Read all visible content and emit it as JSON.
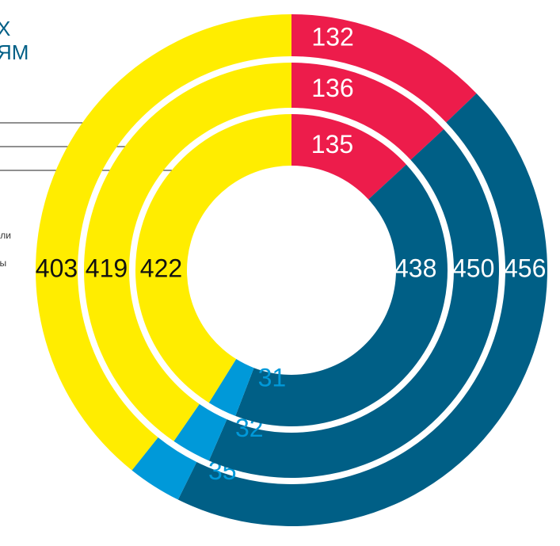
{
  "chart_data": {
    "type": "donut",
    "texts": [
      "Х",
      "ЯМ",
      "ели",
      "ты"
    ],
    "colors": [
      "#ed1c4b",
      "#005f86",
      "#0099d9",
      "#ffed00"
    ],
    "series": [
      {
        "values": [
          132,
          456,
          35,
          403
        ]
      },
      {
        "values": [
          136,
          450,
          32,
          419
        ]
      },
      {
        "values": [
          135,
          438,
          31,
          422
        ]
      }
    ]
  }
}
